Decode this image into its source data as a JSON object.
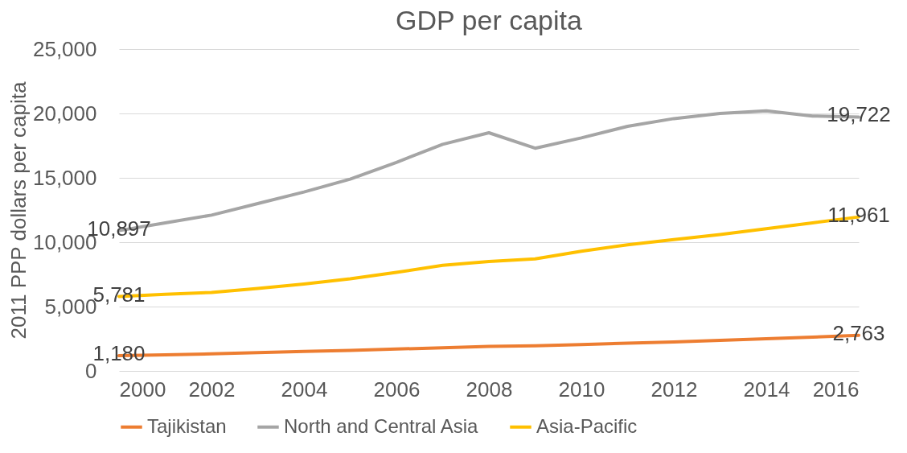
{
  "chart_data": {
    "type": "line",
    "title": "GDP per capita",
    "ylabel": "2011 PPP dollars per capita",
    "x": [
      2000,
      2001,
      2002,
      2003,
      2004,
      2005,
      2006,
      2007,
      2008,
      2009,
      2010,
      2011,
      2012,
      2013,
      2014,
      2015,
      2016
    ],
    "xlim": [
      2000,
      2016
    ],
    "xticks": [
      2000,
      2002,
      2004,
      2006,
      2008,
      2010,
      2012,
      2014,
      2016
    ],
    "ylim": [
      0,
      25000
    ],
    "yticks": [
      0,
      {
        "value": 5000,
        "label": "5,000"
      },
      {
        "value": 10000,
        "label": "10,000"
      },
      {
        "value": 15000,
        "label": "15,000"
      },
      {
        "value": 20000,
        "label": "20,000"
      },
      {
        "value": 25000,
        "label": "25,000"
      }
    ],
    "grid": "y",
    "legend": "bottom",
    "marker": "none",
    "series": [
      {
        "name": "Tajikistan",
        "color": "#ed7d31",
        "values": [
          1180,
          1250,
          1330,
          1420,
          1520,
          1600,
          1700,
          1800,
          1900,
          1950,
          2050,
          2150,
          2250,
          2380,
          2500,
          2620,
          2763
        ],
        "value_labels": [
          "1,180",
          null,
          null,
          null,
          null,
          null,
          null,
          null,
          null,
          null,
          null,
          null,
          null,
          null,
          null,
          null,
          "2,763"
        ]
      },
      {
        "name": "North and Central Asia",
        "color": "#a5a5a5",
        "values": [
          10897,
          11500,
          12100,
          13000,
          13900,
          14900,
          16200,
          17600,
          18500,
          17300,
          18100,
          19000,
          19600,
          20000,
          20200,
          19800,
          19722
        ],
        "value_labels": [
          "10,897",
          null,
          null,
          null,
          null,
          null,
          null,
          null,
          null,
          null,
          null,
          null,
          null,
          null,
          null,
          null,
          "19,722"
        ]
      },
      {
        "name": "Asia-Pacific",
        "color": "#ffc000",
        "values": [
          5781,
          5950,
          6100,
          6400,
          6750,
          7150,
          7650,
          8200,
          8500,
          8700,
          9300,
          9800,
          10200,
          10600,
          11050,
          11500,
          11961
        ],
        "value_labels": [
          "5,781",
          null,
          null,
          null,
          null,
          null,
          null,
          null,
          null,
          null,
          null,
          null,
          null,
          null,
          null,
          null,
          "11,961"
        ]
      }
    ]
  }
}
